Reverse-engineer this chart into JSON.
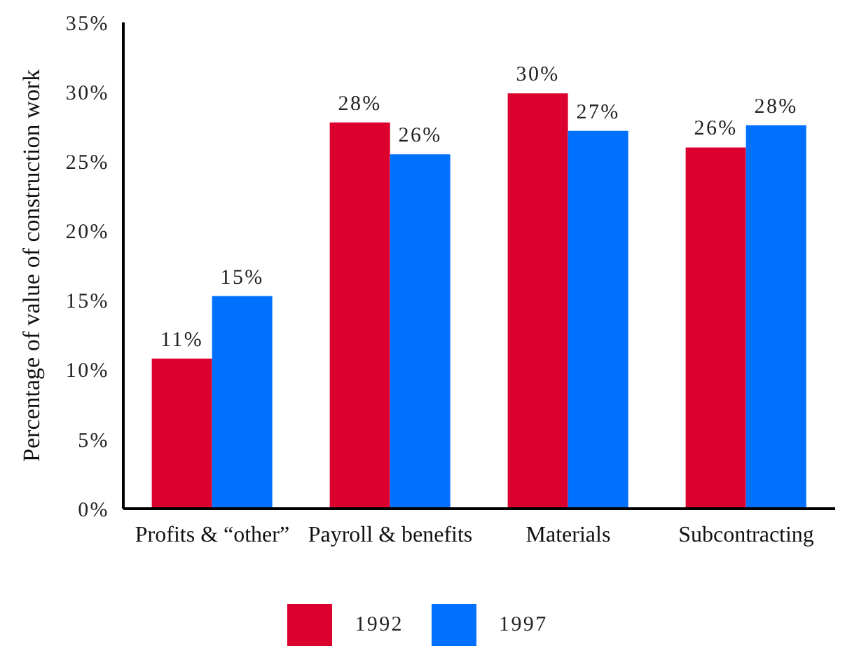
{
  "chart_data": {
    "type": "bar",
    "ylabel": "Percentage of value of construction work",
    "categories": [
      "Profits & “other”",
      "Payroll & benefits",
      "Materials",
      "Subcontracting"
    ],
    "series": [
      {
        "name": "1992",
        "color": "#dc002e",
        "values": [
          10.8,
          27.8,
          29.9,
          26.0
        ],
        "value_labels": [
          "11%",
          "28%",
          "30%",
          "26%"
        ]
      },
      {
        "name": "1997",
        "color": "#0070ff",
        "values": [
          15.3,
          25.5,
          27.2,
          27.6
        ],
        "value_labels": [
          "15%",
          "26%",
          "27%",
          "28%"
        ]
      }
    ],
    "ylim": [
      0,
      35
    ],
    "yticks": [
      {
        "value": 0,
        "label": "0%"
      },
      {
        "value": 5,
        "label": "5%"
      },
      {
        "value": 10,
        "label": "10%"
      },
      {
        "value": 15,
        "label": "15%"
      },
      {
        "value": 20,
        "label": "20%"
      },
      {
        "value": 25,
        "label": "25%"
      },
      {
        "value": 30,
        "label": "30%"
      },
      {
        "value": 35,
        "label": "35%"
      }
    ],
    "legend": "bottom"
  }
}
